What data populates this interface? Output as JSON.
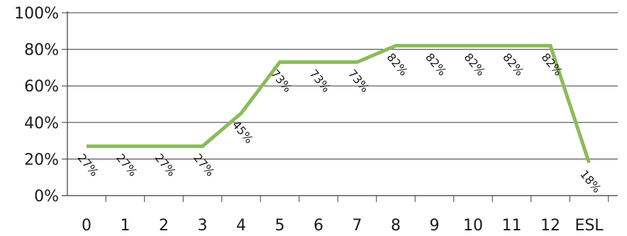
{
  "chart_data": {
    "type": "line",
    "categories": [
      "0",
      "1",
      "2",
      "3",
      "4",
      "5",
      "6",
      "7",
      "8",
      "9",
      "10",
      "11",
      "12",
      "ESL"
    ],
    "values": [
      27,
      27,
      27,
      27,
      45,
      73,
      73,
      73,
      82,
      82,
      82,
      82,
      82,
      18
    ],
    "data_labels": [
      "27%",
      "27%",
      "27%",
      "27%",
      "45%",
      "73%",
      "73%",
      "73%",
      "82%",
      "82%",
      "82%",
      "82%",
      "82%",
      "18%"
    ],
    "y_ticks": [
      "0%",
      "20%",
      "40%",
      "60%",
      "80%",
      "100%"
    ],
    "ylim": [
      0,
      100
    ],
    "grid": "horizontal",
    "line_color": "#8bbb5a",
    "title": "",
    "xlabel": "",
    "ylabel": ""
  }
}
